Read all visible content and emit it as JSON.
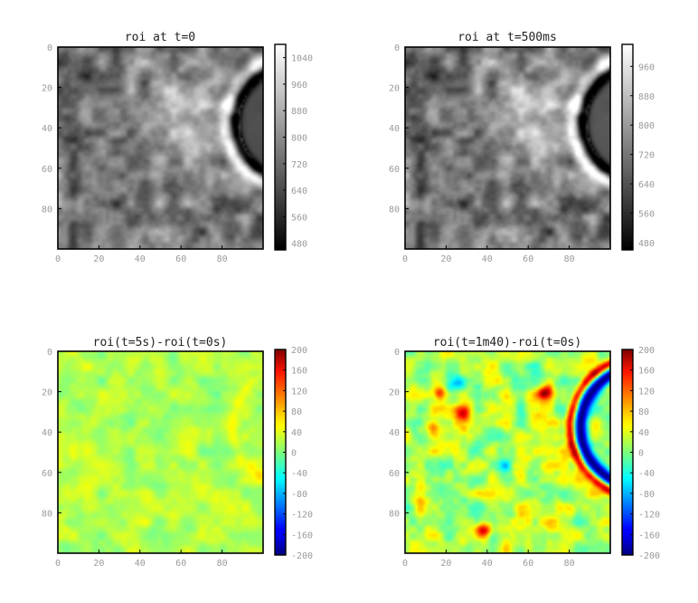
{
  "chart_data": [
    {
      "type": "heatmap",
      "title": "roi at t=0",
      "colormap": "gray",
      "xlim": [
        0,
        100
      ],
      "ylim": [
        100,
        0
      ],
      "xticks": [
        "0",
        "20",
        "40",
        "60",
        "80"
      ],
      "yticks": [
        "0",
        "20",
        "40",
        "60",
        "80"
      ],
      "colorbar": {
        "min": 460,
        "max": 1080,
        "ticks": [
          "1040",
          "960",
          "880",
          "800",
          "720",
          "640",
          "560",
          "480"
        ]
      },
      "features": {
        "ring_center": [
          115,
          37
        ],
        "ring_radius": 30,
        "ring": "dark ring with bright halo on the right edge",
        "bright_center": [
          62,
          33
        ]
      }
    },
    {
      "type": "heatmap",
      "title": "roi at t=500ms",
      "colormap": "gray",
      "xlim": [
        0,
        100
      ],
      "ylim": [
        100,
        0
      ],
      "xticks": [
        "0",
        "20",
        "40",
        "60",
        "80"
      ],
      "yticks": [
        "0",
        "20",
        "40",
        "60",
        "80"
      ],
      "colorbar": {
        "min": 460,
        "max": 1020,
        "ticks": [
          "960",
          "880",
          "800",
          "720",
          "640",
          "560",
          "480"
        ]
      },
      "features": {
        "ring_center": [
          115,
          37
        ],
        "ring_radius": 30,
        "ring": "dark ring with bright halo on the right edge",
        "bright_center": [
          62,
          33
        ]
      }
    },
    {
      "type": "heatmap",
      "title": "roi(t=5s)-roi(t=0s)",
      "colormap": "jet",
      "xlim": [
        0,
        100
      ],
      "ylim": [
        100,
        0
      ],
      "xticks": [
        "0",
        "20",
        "40",
        "60",
        "80"
      ],
      "yticks": [
        "0",
        "20",
        "40",
        "60",
        "80"
      ],
      "colorbar": {
        "min": -200,
        "max": 200,
        "ticks": [
          "200",
          "160",
          "120",
          "80",
          "40",
          "0",
          "-40",
          "-80",
          "-120",
          "-160",
          "-200"
        ]
      },
      "features": {
        "baseline": 0,
        "noise": 35,
        "faint_ring_center": [
          115,
          37
        ],
        "faint_ring_radius": 30
      }
    },
    {
      "type": "heatmap",
      "title": "roi(t=1m40)-roi(t=0s)",
      "colormap": "jet",
      "xlim": [
        0,
        100
      ],
      "ylim": [
        100,
        0
      ],
      "xticks": [
        "0",
        "20",
        "40",
        "60",
        "80"
      ],
      "yticks": [
        "0",
        "20",
        "40",
        "60",
        "80"
      ],
      "colorbar": {
        "min": -200,
        "max": 200,
        "ticks": [
          "200",
          "160",
          "120",
          "80",
          "40",
          "0",
          "-40",
          "-80",
          "-120",
          "-160",
          "-200"
        ]
      },
      "features": {
        "baseline": 0,
        "noise": 70,
        "ring_center": [
          115,
          37
        ],
        "ring_radius": 30,
        "ring_value": -200,
        "halo_value": 160,
        "spots": [
          [
            16,
            20,
            140
          ],
          [
            28,
            30,
            120
          ],
          [
            13,
            37,
            110
          ],
          [
            38,
            88,
            150
          ],
          [
            68,
            20,
            170
          ],
          [
            48,
            56,
            -110
          ],
          [
            25,
            15,
            -90
          ]
        ]
      }
    }
  ]
}
